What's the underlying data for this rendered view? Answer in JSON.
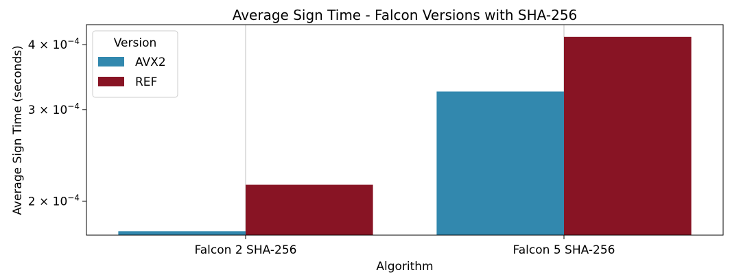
{
  "chart_data": {
    "type": "bar",
    "title": "Average Sign Time - Falcon Versions with SHA-256",
    "xlabel": "Algorithm",
    "ylabel": "Average Sign Time (seconds)",
    "y_scale": "log",
    "ylim": [
      0.000172,
      0.000437
    ],
    "categories": [
      "Falcon 2 SHA-256",
      "Falcon 5 SHA-256"
    ],
    "series": [
      {
        "name": "AVX2",
        "color": "#3288ae",
        "values": [
          0.000175,
          0.000325
        ]
      },
      {
        "name": "REF",
        "color": "#881424",
        "values": [
          0.000215,
          0.000414
        ]
      }
    ],
    "y_ticks": [
      {
        "value": 0.0002,
        "mantissa": "2",
        "exponent": "−4"
      },
      {
        "value": 0.0003,
        "mantissa": "3",
        "exponent": "−4"
      },
      {
        "value": 0.0004,
        "mantissa": "4",
        "exponent": "−4"
      }
    ],
    "legend": {
      "title": "Version",
      "position": "top-left"
    },
    "grid": "vertical"
  }
}
